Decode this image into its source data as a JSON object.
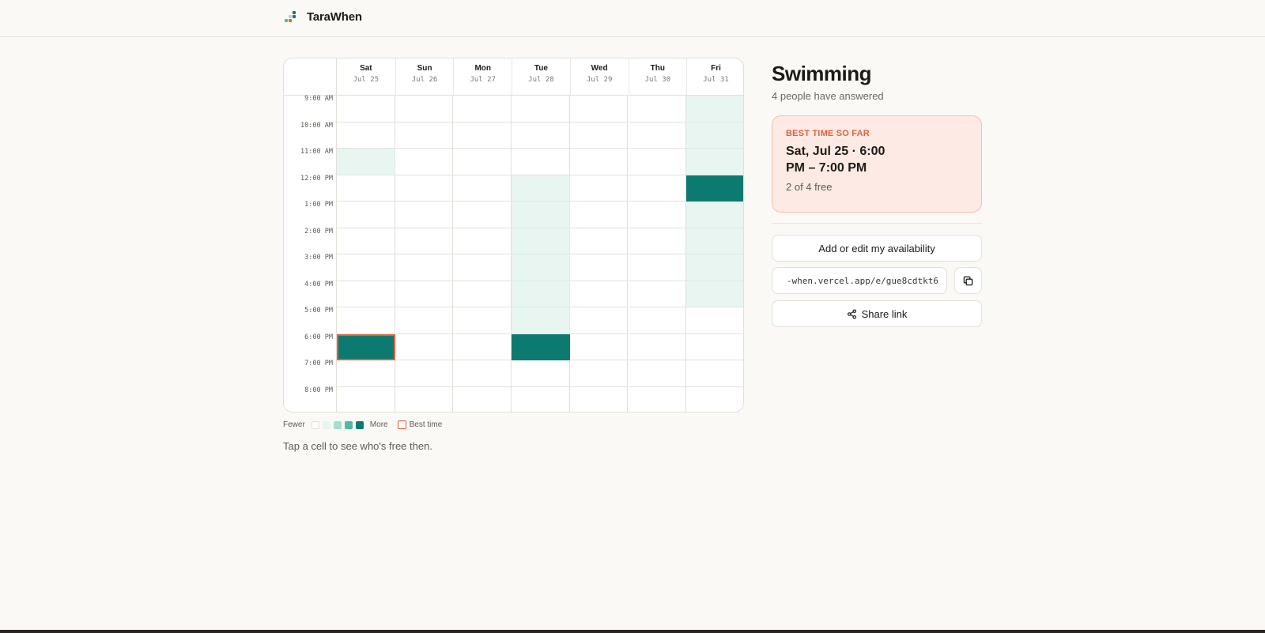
{
  "app": {
    "name": "TaraWhen"
  },
  "event": {
    "title": "Swimming",
    "answered": "4 people have answered"
  },
  "days": [
    {
      "name": "Sat",
      "date": "Jul 25"
    },
    {
      "name": "Sun",
      "date": "Jul 26"
    },
    {
      "name": "Mon",
      "date": "Jul 27"
    },
    {
      "name": "Tue",
      "date": "Jul 28"
    },
    {
      "name": "Wed",
      "date": "Jul 29"
    },
    {
      "name": "Thu",
      "date": "Jul 30"
    },
    {
      "name": "Fri",
      "date": "Jul 31"
    }
  ],
  "times": [
    "9:00 AM",
    "10:00 AM",
    "11:00 AM",
    "12:00 PM",
    "1:00 PM",
    "2:00 PM",
    "3:00 PM",
    "4:00 PM",
    "5:00 PM",
    "6:00 PM",
    "7:00 PM",
    "8:00 PM"
  ],
  "availability_levels": [
    [
      0,
      0,
      1,
      0,
      0,
      0,
      0,
      0,
      0,
      4,
      0,
      0
    ],
    [
      0,
      0,
      0,
      0,
      0,
      0,
      0,
      0,
      0,
      0,
      0,
      0
    ],
    [
      0,
      0,
      0,
      0,
      0,
      0,
      0,
      0,
      0,
      0,
      0,
      0
    ],
    [
      0,
      0,
      0,
      1,
      1,
      1,
      1,
      1,
      1,
      4,
      0,
      0
    ],
    [
      0,
      0,
      0,
      0,
      0,
      0,
      0,
      0,
      0,
      0,
      0,
      0
    ],
    [
      0,
      0,
      0,
      0,
      0,
      0,
      0,
      0,
      0,
      0,
      0,
      0
    ],
    [
      1,
      1,
      1,
      4,
      1,
      1,
      1,
      1,
      0,
      0,
      0,
      0
    ]
  ],
  "best_cell": {
    "day": 0,
    "slot": 9
  },
  "heat_colors": [
    "#ffffff",
    "#e8f5f1",
    "#a8ddd1",
    "#52b8a7",
    "#0d7a6f"
  ],
  "best_color": "#e0613f",
  "legend": {
    "fewer": "Fewer",
    "more": "More",
    "best": "Best time"
  },
  "hint": "Tap a cell to see who's free then.",
  "best": {
    "label": "BEST TIME SO FAR",
    "time_line1": "Sat, Jul 25 · 6:00",
    "time_line2": "PM – 7:00 PM",
    "free": "2 of 4 free"
  },
  "actions": {
    "edit_label": "Add or edit my availability",
    "link_value": "-when.vercel.app/e/gue8cdtkt6",
    "share_label": "Share link",
    "copy_icon": "copy-icon",
    "share_icon": "share-icon"
  }
}
